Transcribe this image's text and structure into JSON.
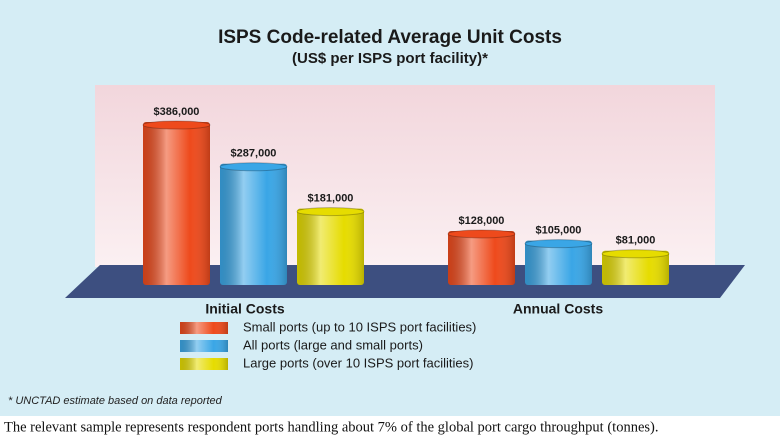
{
  "chart_data": {
    "type": "bar",
    "title": "ISPS Code-related Average Unit Costs",
    "subtitle": "(US$ per ISPS port facility)*",
    "categories": [
      "Initial Costs",
      "Annual Costs"
    ],
    "series": [
      {
        "name": "Small ports (up to 10 ISPS port facilities)",
        "color": "#ee4a1c",
        "values": [
          386000,
          128000
        ],
        "value_labels": [
          "$386,000",
          "$128,000"
        ]
      },
      {
        "name": "All ports (large and small ports)",
        "color": "#3aa6e6",
        "values": [
          287000,
          105000
        ],
        "value_labels": [
          "$287,000",
          "$105,000"
        ]
      },
      {
        "name": "Large ports (over 10 ISPS port facilities)",
        "color": "#e6dc00",
        "values": [
          181000,
          81000
        ],
        "value_labels": [
          "$181,000",
          "$81,000"
        ]
      }
    ],
    "footnote": "* UNCTAD estimate based on data reported",
    "caption": "The relevant sample represents respondent ports handling about 7% of the global port cargo throughput (tonnes)."
  }
}
